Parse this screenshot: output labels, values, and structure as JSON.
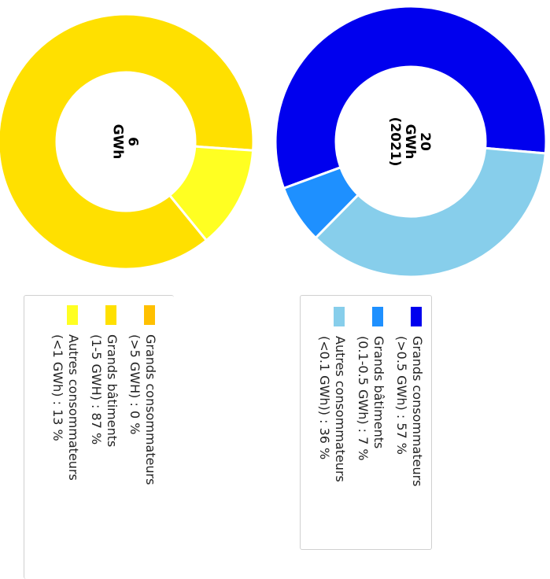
{
  "chart_data": [
    {
      "type": "pie",
      "center_label": [
        "6",
        "GWh"
      ],
      "hole": "donut",
      "series": [
        {
          "name": "Grands consommateurs (>5 GWH) : 0 %",
          "value": 0,
          "color": "#FFC000"
        },
        {
          "name": "Grands bâtiments (1-5 GWH) : 87 %",
          "value": 87,
          "color": "#FFE000"
        },
        {
          "name": "Autres consommateurs (<1 GWh) : 13 %",
          "value": 13,
          "color": "#FFFF22"
        }
      ],
      "legend_lines": [
        [
          "Grands consommateurs",
          "(>5 GWH) : 0 %"
        ],
        [
          "Grands bâtiments",
          "(1-5 GWH) : 87 %"
        ],
        [
          "Autres consommateurs",
          "(<1 GWh) : 13 %"
        ]
      ],
      "legend_placement": "bottom"
    },
    {
      "type": "pie",
      "center_label": [
        "20",
        "GWh",
        "(2021)"
      ],
      "hole": "donut",
      "series": [
        {
          "name": "Grands consommateurs (>0.5 GWh) : 57 %",
          "value": 57,
          "color": "#0000EE"
        },
        {
          "name": "Grands bâtiments (0.1-0.5 GWh) : 7 %",
          "value": 7,
          "color": "#1E90FF"
        },
        {
          "name": "Autres consommateurs (<0.1 GWh)) : 36 %",
          "value": 36,
          "color": "#87CEEB"
        }
      ],
      "legend_lines": [
        [
          "Grands consommateurs",
          "(>0.5 GWh) : 57 %"
        ],
        [
          "Grands bâtiments",
          "(0.1-0.5 GWh) : 7 %"
        ],
        [
          "Autres consommateurs",
          "(<0.1 GWh)) : 36 %"
        ]
      ],
      "legend_placement": "bottom"
    }
  ]
}
